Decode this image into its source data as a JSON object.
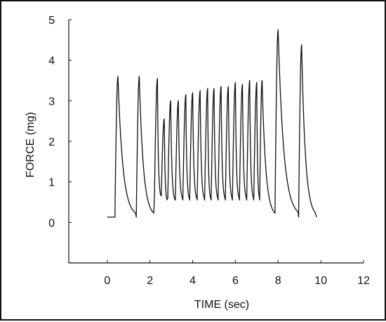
{
  "chart_data": {
    "type": "line",
    "title": "",
    "xlabel": "TIME (sec)",
    "ylabel": "FORCE (mg)",
    "xlim": [
      -1.8,
      12
    ],
    "ylim": [
      -1.0,
      5.0
    ],
    "x_ticks": [
      {
        "value": 0,
        "label": "0"
      },
      {
        "value": 2,
        "label": "2"
      },
      {
        "value": 4,
        "label": "4"
      },
      {
        "value": 6,
        "label": "6"
      },
      {
        "value": 8,
        "label": "8"
      },
      {
        "value": 10,
        "label": "10"
      },
      {
        "value": 12,
        "label": "12"
      }
    ],
    "y_ticks": [
      {
        "value": 0,
        "label": "0"
      },
      {
        "value": 1,
        "label": "1"
      },
      {
        "value": 2,
        "label": "2"
      },
      {
        "value": 3,
        "label": "3"
      },
      {
        "value": 4,
        "label": "4"
      },
      {
        "value": 5,
        "label": "5"
      }
    ],
    "grid": false,
    "legend": "none",
    "series": [
      {
        "line_color": "#111111",
        "baseline": 0.13,
        "trace_start": 0.0,
        "trace_end": 9.8,
        "peaks": [
          {
            "t": 0.5,
            "peak": 3.6,
            "trough": 0.13
          },
          {
            "t": 1.5,
            "peak": 3.6,
            "trough": 0.13
          },
          {
            "t": 2.35,
            "peak": 3.55,
            "trough": 0.65
          },
          {
            "t": 2.67,
            "peak": 2.55,
            "trough": 0.6
          },
          {
            "t": 2.97,
            "peak": 3.0,
            "trough": 0.5
          },
          {
            "t": 3.33,
            "peak": 3.0,
            "trough": 0.55
          },
          {
            "t": 3.68,
            "peak": 3.15,
            "trough": 0.55
          },
          {
            "t": 4.0,
            "peak": 3.2,
            "trough": 0.55
          },
          {
            "t": 4.35,
            "peak": 3.25,
            "trough": 0.55
          },
          {
            "t": 4.7,
            "peak": 3.3,
            "trough": 0.55
          },
          {
            "t": 5.0,
            "peak": 3.3,
            "trough": 0.55
          },
          {
            "t": 5.33,
            "peak": 3.35,
            "trough": 0.55
          },
          {
            "t": 5.67,
            "peak": 3.35,
            "trough": 0.55
          },
          {
            "t": 6.0,
            "peak": 3.45,
            "trough": 0.55
          },
          {
            "t": 6.33,
            "peak": 3.4,
            "trough": 0.55
          },
          {
            "t": 6.67,
            "peak": 3.5,
            "trough": 0.55
          },
          {
            "t": 7.0,
            "peak": 3.45,
            "trough": 0.55
          },
          {
            "t": 7.25,
            "peak": 3.5,
            "trough": 0.55
          },
          {
            "t": 8.0,
            "peak": 4.75,
            "trough": 0.13
          },
          {
            "t": 9.1,
            "peak": 4.38,
            "trough": 0.13
          }
        ]
      }
    ]
  }
}
